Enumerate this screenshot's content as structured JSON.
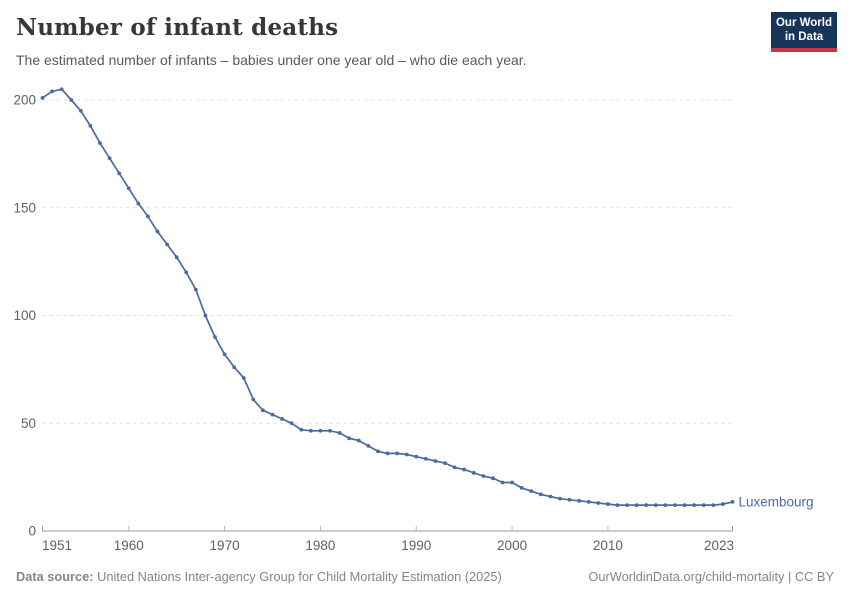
{
  "header": {
    "title": "Number of infant deaths",
    "subtitle": "The estimated number of infants – babies under one year old – who die each year.",
    "logo_line1": "Our World",
    "logo_line2": "in Data"
  },
  "footer": {
    "datasource_label": "Data source:",
    "datasource_text": " United Nations Inter-agency Group for Child Mortality Estimation (2025)",
    "rights_text": "OurWorldinData.org/child-mortality | CC BY"
  },
  "colors": {
    "line": "#4c6a9c",
    "grid": "#dcdcdc",
    "axis": "#9a9a9a",
    "tick": "#b8b8b8",
    "tick_text": "#616161",
    "logo_bg": "#16355a",
    "logo_red": "#cb3442"
  },
  "chart_data": {
    "type": "line",
    "title": "Number of infant deaths",
    "xlabel": "",
    "ylabel": "",
    "xlim": [
      1951,
      2023
    ],
    "ylim": [
      0,
      200
    ],
    "grid": "horizontal-dashed",
    "x_ticks": [
      1951,
      1960,
      1970,
      1980,
      1990,
      2000,
      2010,
      2023
    ],
    "y_ticks": [
      0,
      50,
      100,
      150,
      200
    ],
    "series": [
      {
        "name": "Luxembourg",
        "label": "Luxembourg",
        "x": [
          1951,
          1952,
          1953,
          1954,
          1955,
          1956,
          1957,
          1958,
          1959,
          1960,
          1961,
          1962,
          1963,
          1964,
          1965,
          1966,
          1967,
          1968,
          1969,
          1970,
          1971,
          1972,
          1973,
          1974,
          1975,
          1976,
          1977,
          1978,
          1979,
          1980,
          1981,
          1982,
          1983,
          1984,
          1985,
          1986,
          1987,
          1988,
          1989,
          1990,
          1991,
          1992,
          1993,
          1994,
          1995,
          1996,
          1997,
          1998,
          1999,
          2000,
          2001,
          2002,
          2003,
          2004,
          2005,
          2006,
          2007,
          2008,
          2009,
          2010,
          2011,
          2012,
          2013,
          2014,
          2015,
          2016,
          2017,
          2018,
          2019,
          2020,
          2021,
          2022,
          2023
        ],
        "values": [
          201,
          204,
          205,
          200,
          195,
          188,
          180,
          173,
          166,
          159,
          152,
          146,
          139,
          133,
          127,
          120,
          112,
          100,
          90,
          82,
          76,
          71,
          61,
          56,
          54,
          52,
          50,
          47,
          46.5,
          46.5,
          46.5,
          45.5,
          43,
          42,
          39.5,
          37,
          36,
          36,
          35.5,
          34.5,
          33.5,
          32.5,
          31.5,
          29.5,
          28.5,
          27,
          25.5,
          24.5,
          22.5,
          22.5,
          20,
          18.5,
          17,
          16,
          15,
          14.5,
          14,
          13.5,
          13,
          12.5,
          12,
          12,
          12,
          12,
          12,
          12,
          12,
          12,
          12,
          12,
          12,
          12.5,
          13.5
        ]
      }
    ]
  }
}
